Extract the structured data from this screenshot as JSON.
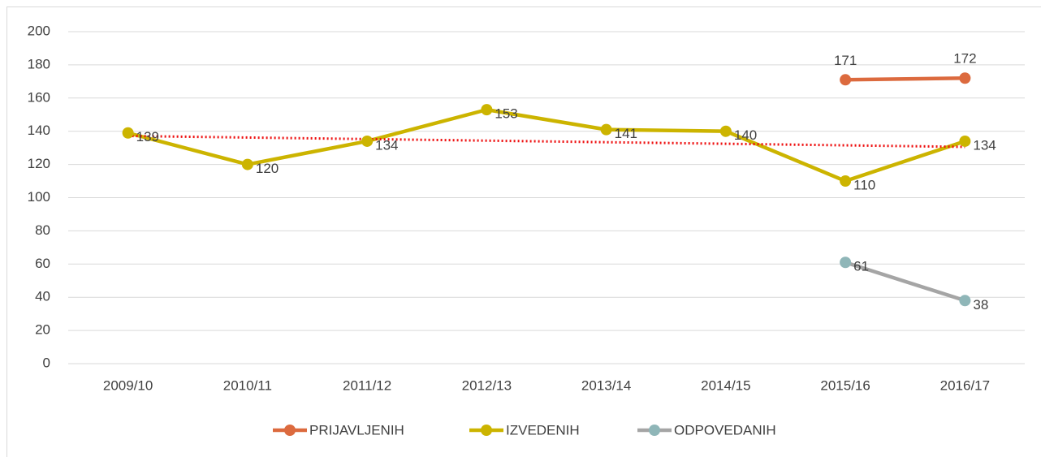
{
  "chart_data": {
    "type": "line",
    "categories": [
      "2009/10",
      "2010/11",
      "2011/12",
      "2012/13",
      "2013/14",
      "2014/15",
      "2015/16",
      "2016/17"
    ],
    "series": [
      {
        "name": "PRIJAVLJENIH",
        "color": "#dc6a3e",
        "marker_color": "#dc6a3e",
        "label_position": "above",
        "values": [
          null,
          null,
          null,
          null,
          null,
          null,
          171,
          172
        ]
      },
      {
        "name": "IZVEDENIH",
        "color": "#ccb400",
        "marker_color": "#ccb400",
        "label_position": "right",
        "trendline": true,
        "trendline_color": "#ee1111",
        "values": [
          139,
          120,
          134,
          153,
          141,
          140,
          110,
          134
        ]
      },
      {
        "name": "ODPOVEDANIH",
        "color": "#a5a5a5",
        "marker_color": "#8fb6b8",
        "label_position": "right",
        "values": [
          null,
          null,
          null,
          null,
          null,
          null,
          61,
          38
        ]
      }
    ],
    "ylim": [
      0,
      200
    ],
    "yticks": [
      0,
      20,
      40,
      60,
      80,
      100,
      120,
      140,
      160,
      180,
      200
    ],
    "grid": true,
    "legend": "bottom"
  }
}
